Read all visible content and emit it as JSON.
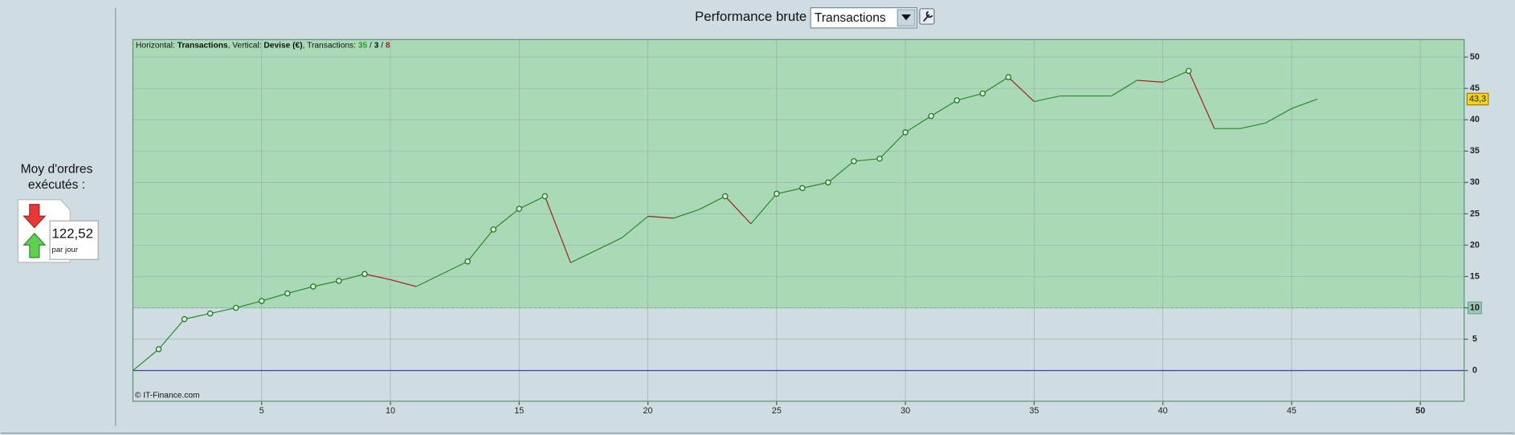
{
  "header": {
    "label": "Performance brute",
    "select": "Transactions"
  },
  "side_panel": {
    "title_line1": "Moy d'ordres",
    "title_line2": "exécutés :",
    "value": "122,52",
    "unit": "par jour"
  },
  "chart_data": {
    "type": "line",
    "info": {
      "parts": [
        "Horizontal: ",
        "Transactions",
        ", Vertical: ",
        "Devise (€)",
        ", Transactions: "
      ],
      "wins": 35,
      "sep1": " / ",
      "even": 3,
      "sep2": " / ",
      "losses": 8
    },
    "credit": "© IT-Finance.com",
    "x": [
      0,
      1,
      2,
      3,
      4,
      5,
      6,
      7,
      8,
      9,
      10,
      11,
      12,
      13,
      14,
      15,
      16,
      17,
      18,
      19,
      20,
      21,
      22,
      23,
      24,
      25,
      26,
      27,
      28,
      29,
      30,
      31,
      32,
      33,
      34,
      35,
      36,
      37,
      38,
      39,
      40,
      41,
      42,
      43,
      44,
      45,
      46
    ],
    "values": [
      0,
      3.4,
      8.2,
      9.1,
      10.0,
      11.1,
      12.3,
      13.4,
      14.3,
      15.4,
      14.5,
      13.4,
      15.4,
      17.4,
      22.5,
      25.8,
      27.8,
      17.2,
      19.2,
      21.2,
      24.6,
      24.3,
      25.7,
      27.8,
      23.4,
      28.2,
      29.1,
      30.0,
      33.4,
      33.8,
      38.0,
      40.6,
      43.1,
      44.2,
      46.8,
      42.9,
      43.8,
      43.8,
      43.8,
      46.3,
      46.0,
      47.8,
      38.6,
      38.6,
      39.5,
      41.8,
      43.3
    ],
    "value_labels": [
      null,
      null,
      null,
      null,
      null,
      null,
      null,
      null,
      null,
      null,
      null,
      null,
      null,
      null,
      null,
      null,
      null,
      null,
      null,
      null,
      null,
      null,
      null,
      null,
      null,
      null,
      null,
      null,
      null,
      null,
      null,
      null,
      null,
      null,
      null,
      null,
      null,
      null,
      null,
      null,
      null,
      null,
      null,
      null,
      null,
      null,
      "43,3"
    ],
    "marked_x": [
      1,
      2,
      3,
      4,
      5,
      6,
      7,
      8,
      9,
      13,
      14,
      15,
      16,
      23,
      25,
      26,
      27,
      28,
      29,
      30,
      31,
      32,
      33,
      34,
      41
    ],
    "up_color": "#2a8a2a",
    "down_color": "#a02020",
    "threshold": 10,
    "above_color": "#a9d9b6",
    "below_color": "#cfdde3",
    "zero_line_color": "#3030b0",
    "xlim": [
      0,
      51.7
    ],
    "ylim": [
      -4.9,
      52.8
    ],
    "xticks": [
      5,
      10,
      15,
      20,
      25,
      30,
      35,
      40,
      45,
      50
    ],
    "yticks": [
      0,
      5,
      10,
      15,
      20,
      25,
      30,
      35,
      40,
      45,
      50
    ],
    "grid": true
  }
}
